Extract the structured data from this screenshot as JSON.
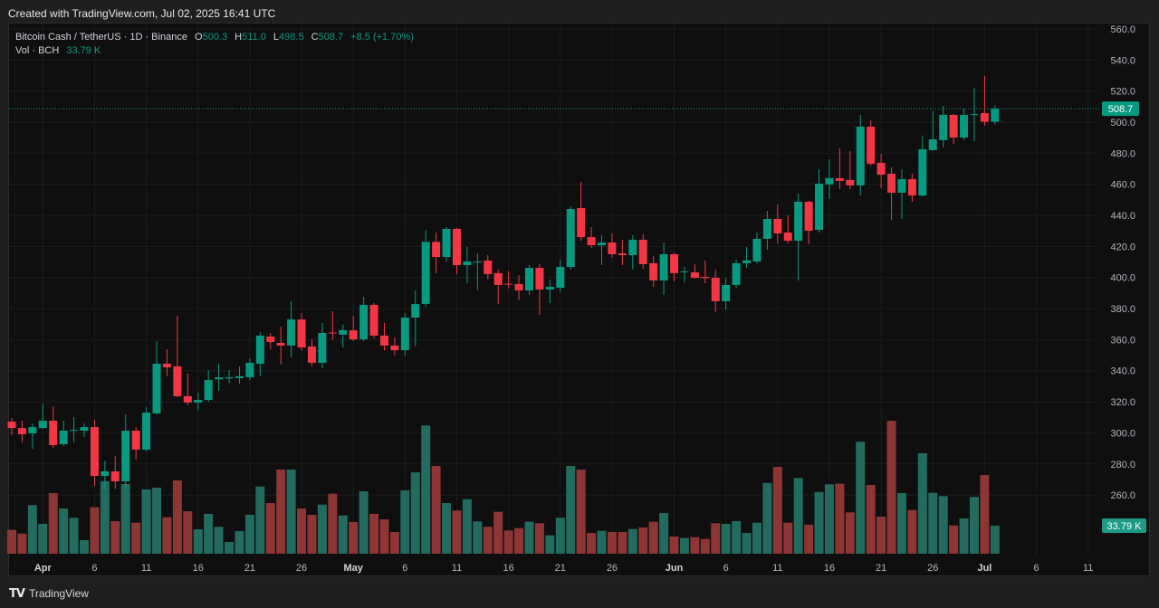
{
  "header": {
    "created_text": "Created with TradingView.com, Jul 02, 2025 16:41 UTC"
  },
  "legend": {
    "symbol": "Bitcoin Cash / TetherUS · 1D · Binance",
    "o_label": "O",
    "o_value": "500.3",
    "h_label": "H",
    "h_value": "511.0",
    "l_label": "L",
    "l_value": "498.5",
    "c_label": "C",
    "c_value": "508.7",
    "change": "+8.5 (+1.70%)",
    "vol_label": "Vol · BCH",
    "vol_value": "33.79 K"
  },
  "footer": {
    "logo_mark": "TV",
    "brand": "TradingView"
  },
  "colors": {
    "up": "#089981",
    "down": "#f23645",
    "vol_up": "#226b5e",
    "vol_down": "#8e3536",
    "background": "#0f0f0f"
  },
  "chart_data": {
    "type": "candlestick",
    "title": "",
    "ylim": [
      250,
      560
    ],
    "grid": true,
    "y_ticks": [
      "560.0",
      "540.0",
      "520.0",
      "500.0",
      "480.0",
      "460.0",
      "440.0",
      "420.0",
      "400.0",
      "380.0",
      "360.0",
      "340.0",
      "320.0",
      "300.0",
      "280.0",
      "260.0"
    ],
    "x_ticks": [
      {
        "label": "Apr",
        "date": "2025-04-01"
      },
      {
        "label": "6",
        "date": "2025-04-06"
      },
      {
        "label": "11",
        "date": "2025-04-11"
      },
      {
        "label": "16",
        "date": "2025-04-16"
      },
      {
        "label": "21",
        "date": "2025-04-21"
      },
      {
        "label": "26",
        "date": "2025-04-26"
      },
      {
        "label": "May",
        "date": "2025-05-01"
      },
      {
        "label": "6",
        "date": "2025-05-06"
      },
      {
        "label": "11",
        "date": "2025-05-11"
      },
      {
        "label": "16",
        "date": "2025-05-16"
      },
      {
        "label": "21",
        "date": "2025-05-21"
      },
      {
        "label": "26",
        "date": "2025-05-26"
      },
      {
        "label": "Jun",
        "date": "2025-06-01"
      },
      {
        "label": "6",
        "date": "2025-06-06"
      },
      {
        "label": "11",
        "date": "2025-06-11"
      },
      {
        "label": "16",
        "date": "2025-06-16"
      },
      {
        "label": "21",
        "date": "2025-06-21"
      },
      {
        "label": "26",
        "date": "2025-06-26"
      },
      {
        "label": "Jul",
        "date": "2025-07-01"
      },
      {
        "label": "6",
        "date": "2025-07-06"
      },
      {
        "label": "11",
        "date": "2025-07-11"
      }
    ],
    "last_price": "508.7",
    "last_volume": "33.79 K",
    "volume_unit": "K",
    "columns": [
      "date",
      "open",
      "high",
      "low",
      "close",
      "volume"
    ],
    "candles": [
      [
        "2025-03-29",
        307.2,
        309.6,
        298.6,
        303.1,
        28.7
      ],
      [
        "2025-03-30",
        303.1,
        307.8,
        293.8,
        299.1,
        24.3
      ],
      [
        "2025-03-31",
        299.7,
        306.0,
        289.8,
        303.7,
        58.5
      ],
      [
        "2025-04-01",
        303.1,
        318.9,
        302.6,
        307.8,
        36.0
      ],
      [
        "2025-04-02",
        307.8,
        317.1,
        290.3,
        292.1,
        73.0
      ],
      [
        "2025-04-03",
        292.7,
        307.8,
        291.5,
        301.4,
        54.5
      ],
      [
        "2025-04-04",
        301.4,
        310.1,
        293.8,
        301.9,
        43.3
      ],
      [
        "2025-04-05",
        301.4,
        306.0,
        297.3,
        303.7,
        16.4
      ],
      [
        "2025-04-06",
        303.7,
        308.4,
        265.9,
        272.3,
        56.0
      ],
      [
        "2025-04-07",
        272.3,
        282.0,
        263.0,
        275.2,
        87.5
      ],
      [
        "2025-04-08",
        275.2,
        285.0,
        264.0,
        268.8,
        39.2
      ],
      [
        "2025-04-09",
        268.8,
        311.9,
        265.0,
        301.4,
        84.0
      ],
      [
        "2025-04-10",
        301.4,
        303.7,
        282.8,
        289.2,
        37.4
      ],
      [
        "2025-04-11",
        289.2,
        316.6,
        288.0,
        313.0,
        77.4
      ],
      [
        "2025-04-12",
        312.5,
        359.0,
        312.0,
        344.5,
        79.6
      ],
      [
        "2025-04-13",
        344.5,
        353.8,
        336.4,
        342.2,
        44.0
      ],
      [
        "2025-04-14",
        342.8,
        375.4,
        323.0,
        323.6,
        88.3
      ],
      [
        "2025-04-15",
        323.6,
        338.1,
        317.7,
        319.5,
        51.2
      ],
      [
        "2025-04-16",
        319.5,
        325.9,
        314.2,
        321.2,
        29.4
      ],
      [
        "2025-04-17",
        321.2,
        340.4,
        320.0,
        334.0,
        48.0
      ],
      [
        "2025-04-18",
        334.5,
        344.5,
        327.0,
        335.7,
        32.4
      ],
      [
        "2025-04-19",
        335.0,
        340.4,
        332.0,
        335.7,
        14.2
      ],
      [
        "2025-04-20",
        335.2,
        342.8,
        331.7,
        336.4,
        27.3
      ],
      [
        "2025-04-21",
        335.8,
        348.0,
        334.0,
        345.1,
        46.9
      ],
      [
        "2025-04-22",
        344.5,
        364.9,
        336.4,
        362.6,
        81.0
      ],
      [
        "2025-04-23",
        362.0,
        364.3,
        353.8,
        358.5,
        61.0
      ],
      [
        "2025-04-24",
        357.9,
        368.4,
        344.0,
        356.2,
        101.4
      ],
      [
        "2025-04-25",
        356.2,
        384.7,
        348.6,
        373.0,
        101.4
      ],
      [
        "2025-04-26",
        373.0,
        377.0,
        353.0,
        355.0,
        54.5
      ],
      [
        "2025-04-27",
        355.6,
        360.0,
        343.0,
        345.1,
        46.9
      ],
      [
        "2025-04-28",
        345.1,
        370.7,
        341.6,
        364.3,
        59.2
      ],
      [
        "2025-04-29",
        364.6,
        378.3,
        360.0,
        364.0,
        72.3
      ],
      [
        "2025-04-30",
        363.2,
        369.6,
        355.0,
        366.1,
        46.1
      ],
      [
        "2025-05-01",
        366.0,
        375.4,
        359.0,
        360.2,
        38.2
      ],
      [
        "2025-05-02",
        360.2,
        387.6,
        359.0,
        382.4,
        75.2
      ],
      [
        "2025-05-03",
        382.4,
        383.6,
        361.0,
        362.6,
        48.0
      ],
      [
        "2025-05-04",
        362.6,
        370.7,
        353.0,
        356.2,
        41.4
      ],
      [
        "2025-05-05",
        356.2,
        361.4,
        349.8,
        353.2,
        26.2
      ],
      [
        "2025-05-06",
        353.2,
        377.0,
        349.8,
        374.2,
        76.3
      ],
      [
        "2025-05-07",
        374.2,
        391.7,
        355.6,
        382.9,
        98.0
      ],
      [
        "2025-05-08",
        383.0,
        430.7,
        381.2,
        422.9,
        154.5
      ],
      [
        "2025-05-09",
        422.9,
        429.0,
        402.8,
        413.2,
        105.7
      ],
      [
        "2025-05-10",
        413.2,
        432.5,
        410.3,
        431.3,
        61.0
      ],
      [
        "2025-05-11",
        431.3,
        431.9,
        402.2,
        408.0,
        52.0
      ],
      [
        "2025-05-12",
        408.0,
        419.6,
        396.3,
        410.3,
        65.7
      ],
      [
        "2025-05-13",
        409.7,
        415.5,
        391.7,
        410.3,
        38.9
      ],
      [
        "2025-05-14",
        410.9,
        414.4,
        398.7,
        402.2,
        32.4
      ],
      [
        "2025-05-15",
        402.8,
        405.1,
        382.9,
        395.2,
        50.5
      ],
      [
        "2025-05-16",
        396.0,
        404.0,
        393.0,
        395.8,
        28.0
      ],
      [
        "2025-05-17",
        395.8,
        401.6,
        385.3,
        391.7,
        30.8
      ],
      [
        "2025-05-18",
        391.7,
        408.0,
        388.8,
        406.2,
        38.5
      ],
      [
        "2025-05-19",
        406.2,
        408.6,
        376.0,
        392.3,
        36.7
      ],
      [
        "2025-05-20",
        392.3,
        398.7,
        383.5,
        394.0,
        22.1
      ],
      [
        "2025-05-21",
        393.4,
        411.5,
        390.5,
        406.8,
        43.3
      ],
      [
        "2025-05-22",
        406.8,
        445.9,
        405.0,
        444.1,
        105.7
      ],
      [
        "2025-05-23",
        444.7,
        461.6,
        423.7,
        426.0,
        101.4
      ],
      [
        "2025-05-24",
        426.0,
        432.5,
        419.0,
        420.8,
        25.0
      ],
      [
        "2025-05-25",
        420.8,
        427.2,
        408.0,
        422.5,
        27.6
      ],
      [
        "2025-05-26",
        422.5,
        428.4,
        412.6,
        415.0,
        26.2
      ],
      [
        "2025-05-27",
        415.5,
        424.3,
        408.0,
        414.4,
        26.2
      ],
      [
        "2025-05-28",
        414.4,
        427.2,
        405.1,
        424.3,
        29.8
      ],
      [
        "2025-05-29",
        424.3,
        427.8,
        405.7,
        408.6,
        31.6
      ],
      [
        "2025-05-30",
        409.2,
        413.8,
        394.0,
        398.1,
        38.5
      ],
      [
        "2025-05-31",
        398.1,
        422.5,
        388.8,
        415.0,
        49.0
      ],
      [
        "2025-06-01",
        415.0,
        416.0,
        397.5,
        402.8,
        20.7
      ],
      [
        "2025-06-02",
        403.3,
        406.8,
        396.9,
        403.9,
        18.9
      ],
      [
        "2025-06-03",
        403.3,
        408.6,
        399.3,
        399.8,
        20.0
      ],
      [
        "2025-06-04",
        400.4,
        410.9,
        396.3,
        399.6,
        17.8
      ],
      [
        "2025-06-05",
        399.8,
        405.0,
        377.7,
        384.7,
        36.7
      ],
      [
        "2025-06-06",
        384.7,
        399.8,
        379.4,
        395.2,
        36.0
      ],
      [
        "2025-06-07",
        395.2,
        411.5,
        393.4,
        409.2,
        39.2
      ],
      [
        "2025-06-08",
        409.2,
        419.6,
        406.2,
        411.0,
        25.0
      ],
      [
        "2025-06-09",
        410.3,
        429.0,
        409.0,
        424.9,
        37.4
      ],
      [
        "2025-06-10",
        424.9,
        442.9,
        417.9,
        437.7,
        85.3
      ],
      [
        "2025-06-11",
        437.7,
        447.0,
        422.0,
        428.4,
        104.6
      ],
      [
        "2025-06-12",
        428.9,
        440.0,
        422.0,
        423.7,
        37.4
      ],
      [
        "2025-06-13",
        423.7,
        454.0,
        398.0,
        448.8,
        91.2
      ],
      [
        "2025-06-14",
        448.8,
        449.3,
        421.4,
        430.1,
        34.9
      ],
      [
        "2025-06-15",
        430.7,
        469.7,
        429.0,
        460.4,
        74.4
      ],
      [
        "2025-06-16",
        460.0,
        476.0,
        450.5,
        464.0,
        83.6
      ],
      [
        "2025-06-17",
        463.9,
        483.1,
        456.9,
        462.2,
        84.3
      ],
      [
        "2025-06-18",
        462.8,
        481.4,
        456.9,
        459.3,
        49.8
      ],
      [
        "2025-06-19",
        459.3,
        504.7,
        452.8,
        497.1,
        134.8
      ],
      [
        "2025-06-20",
        497.1,
        501.2,
        472.0,
        473.2,
        82.8
      ],
      [
        "2025-06-21",
        473.8,
        479.6,
        457.5,
        466.2,
        44.7
      ],
      [
        "2025-06-22",
        466.8,
        470.9,
        437.1,
        454.6,
        160.2
      ],
      [
        "2025-06-23",
        454.6,
        469.7,
        437.7,
        463.3,
        73.0
      ],
      [
        "2025-06-24",
        463.3,
        466.8,
        448.8,
        452.8,
        52.6
      ],
      [
        "2025-06-25",
        452.8,
        491.4,
        452.0,
        482.5,
        121.0
      ],
      [
        "2025-06-26",
        482.0,
        507.0,
        481.4,
        488.9,
        73.4
      ],
      [
        "2025-06-27",
        488.4,
        510.5,
        483.7,
        504.7,
        69.4
      ],
      [
        "2025-06-28",
        504.7,
        505.2,
        486.0,
        490.1,
        34.1
      ],
      [
        "2025-06-29",
        490.1,
        508.7,
        488.4,
        504.7,
        42.5
      ],
      [
        "2025-06-30",
        504.7,
        522.1,
        487.8,
        505.2,
        68.3
      ],
      [
        "2025-07-01",
        505.8,
        529.7,
        497.7,
        500.3,
        94.8
      ],
      [
        "2025-07-02",
        500.3,
        511.0,
        498.5,
        508.7,
        33.79
      ]
    ]
  }
}
